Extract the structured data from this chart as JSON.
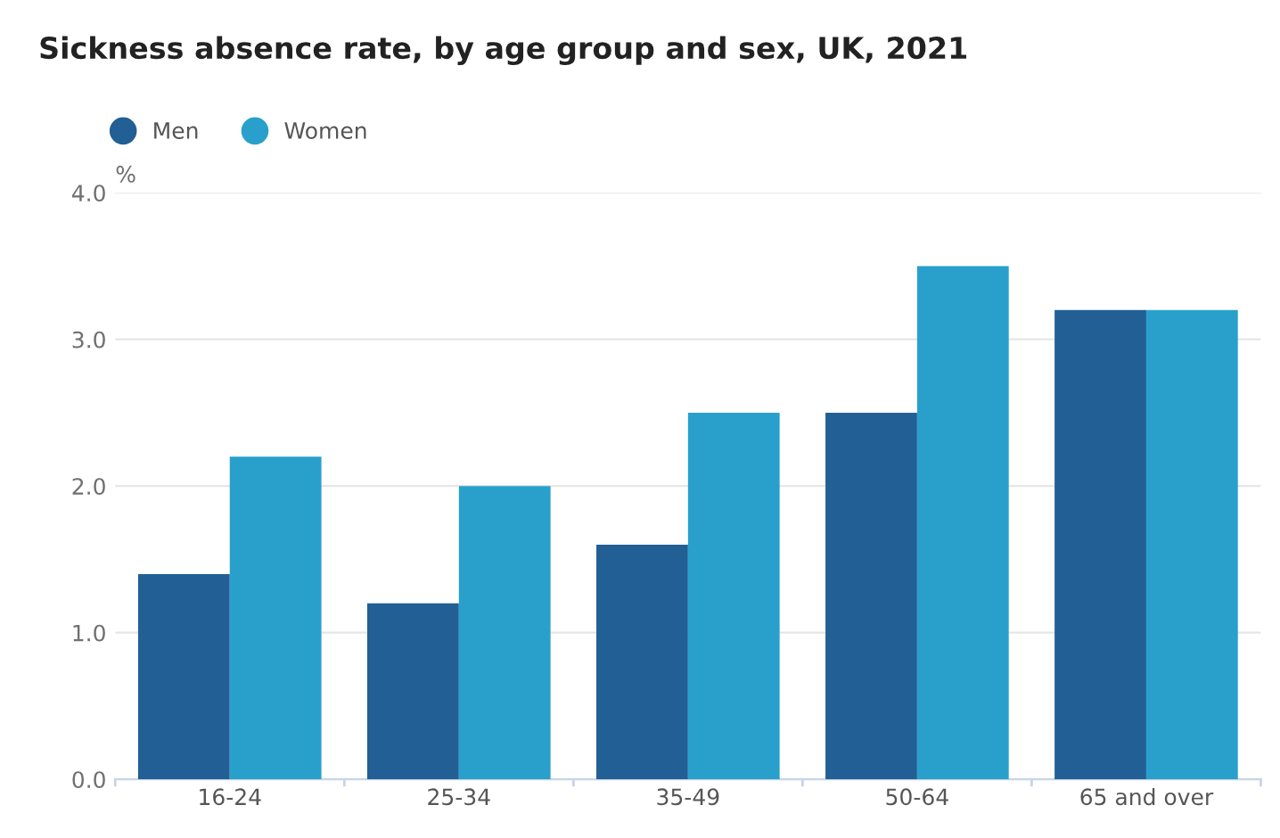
{
  "chart_data": {
    "type": "bar",
    "title": "Sickness absence rate, by age group and sex, UK, 2021",
    "ylabel": "%",
    "categories": [
      "16-24",
      "25-34",
      "35-49",
      "50-64",
      "65 and over"
    ],
    "series": [
      {
        "name": "Men",
        "color": "#215f94",
        "values": [
          1.4,
          1.2,
          1.6,
          2.5,
          3.2
        ]
      },
      {
        "name": "Women",
        "color": "#29a0cb",
        "values": [
          2.2,
          2.0,
          2.5,
          3.5,
          3.2
        ]
      }
    ],
    "ylim": [
      0,
      4
    ],
    "yticks": [
      {
        "value": 0,
        "label": "0.0"
      },
      {
        "value": 1,
        "label": "1.0"
      },
      {
        "value": 2,
        "label": "2.0"
      },
      {
        "value": 3,
        "label": "3.0"
      },
      {
        "value": 4,
        "label": "4.0"
      }
    ],
    "grid": "y",
    "legend": "top left"
  }
}
